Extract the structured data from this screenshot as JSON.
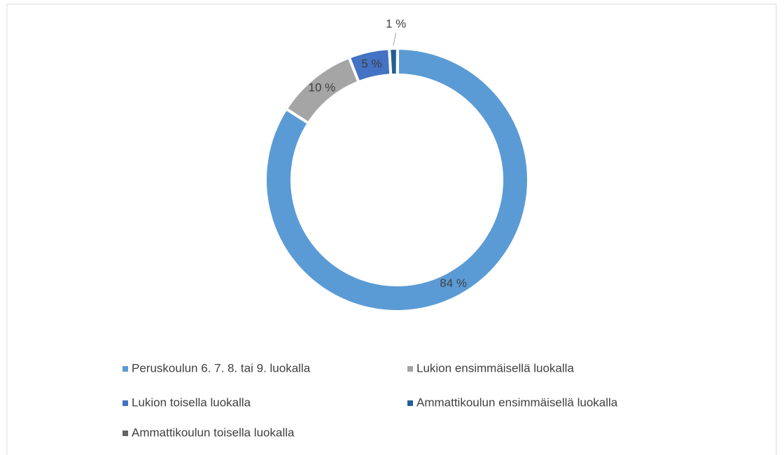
{
  "chart_data": {
    "type": "donut",
    "categories": [
      "Peruskoulun 6. 7. 8. tai 9. luokalla",
      "Lukion ensimmäisellä luokalla",
      "Lukion toisella luokalla",
      "Ammattikoulun ensimmäisellä luokalla",
      "Ammattikoulun toisella luokalla"
    ],
    "values": [
      84,
      10,
      5,
      1,
      0
    ],
    "value_labels": [
      "84 %",
      "10 %",
      "5 %",
      "1 %",
      null
    ],
    "colors": [
      "#5b9bd5",
      "#a5a5a5",
      "#4472c4",
      "#255e91",
      "#636363"
    ],
    "legend": "bottom"
  }
}
